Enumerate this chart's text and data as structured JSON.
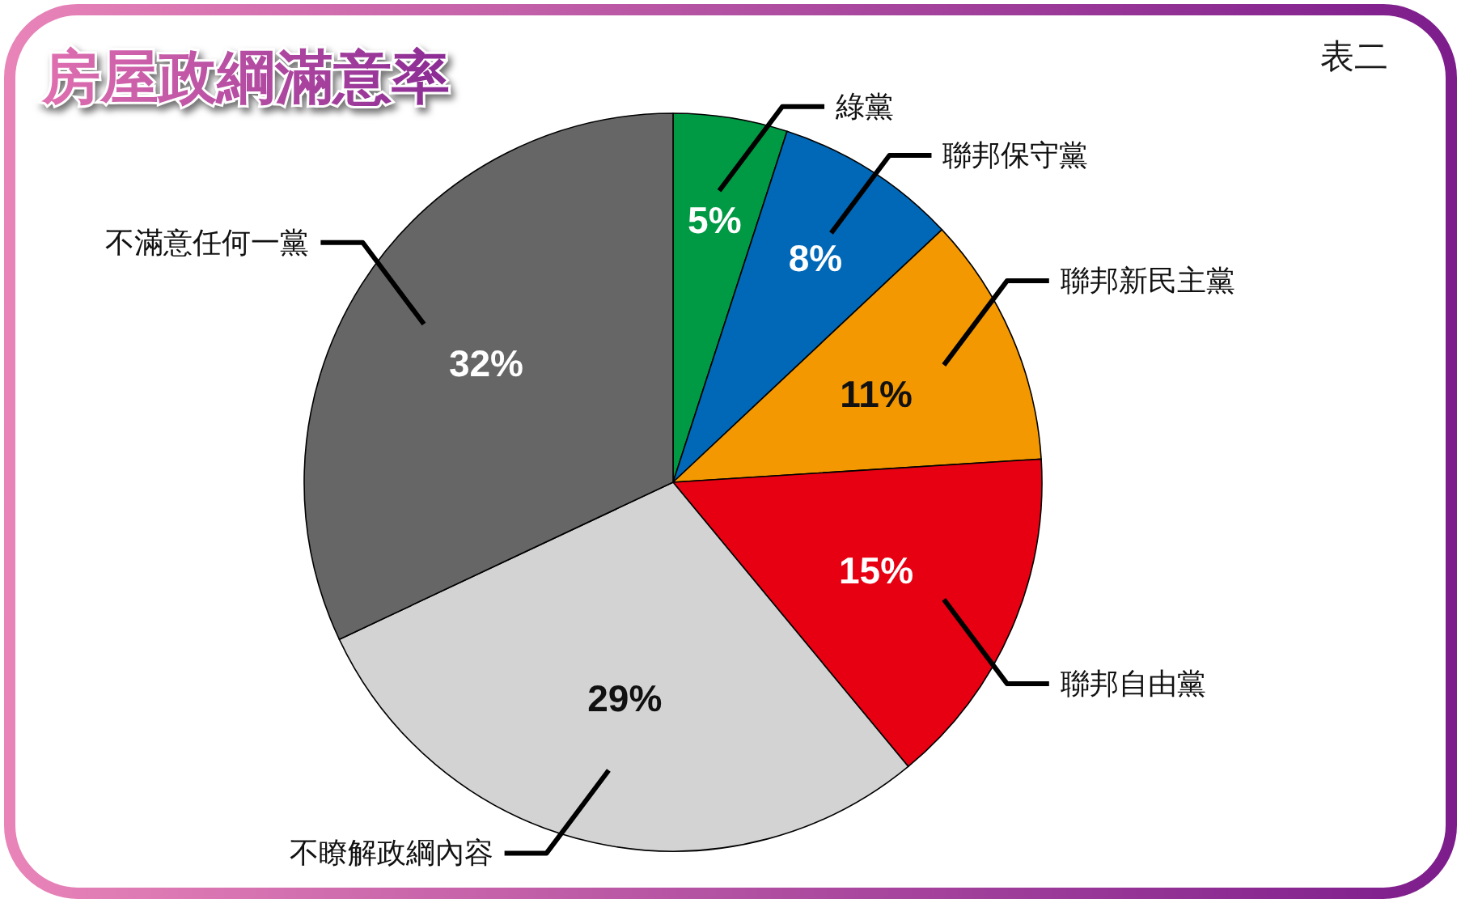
{
  "chart_data": {
    "type": "pie",
    "title": "房屋政綱滿意率",
    "categories": [
      "綠黨",
      "聯邦保守黨",
      "聯邦新民主黨",
      "聯邦自由黨",
      "不瞭解政綱內容",
      "不滿意任何一黨"
    ],
    "values": [
      5,
      8,
      11,
      15,
      29,
      32
    ],
    "colors": [
      "#009944",
      "#0068b7",
      "#f39800",
      "#e60012",
      "#d3d3d3",
      "#666666"
    ],
    "value_labels": [
      "5%",
      "8%",
      "11%",
      "15%",
      "29%",
      "32%"
    ],
    "annotations": [
      "表二"
    ]
  }
}
